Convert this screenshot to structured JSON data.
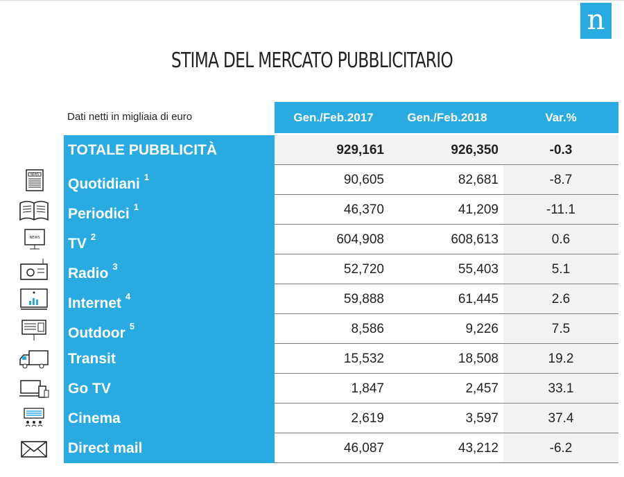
{
  "logo": "n",
  "title": "STIMA DEL MERCATO PUBBLICITARIO",
  "subtitle": "Dati netti in migliaia di euro",
  "headers": [
    "Gen./Feb.2017",
    "Gen./Feb.2018",
    "Var.%"
  ],
  "total": {
    "label": "TOTALE PUBBLICITÀ",
    "v2017": "929,161",
    "v2018": "926,350",
    "var": "-0.3"
  },
  "rows": [
    {
      "label": "Quotidiani",
      "note": "1",
      "v2017": "90,605",
      "v2018": "82,681",
      "var": "-8.7",
      "icon": "newspaper-icon"
    },
    {
      "label": "Periodici",
      "note": "1",
      "v2017": "46,370",
      "v2018": "41,209",
      "var": "-11.1",
      "icon": "magazine-icon"
    },
    {
      "label": "TV",
      "note": "2",
      "v2017": "604,908",
      "v2018": "608,613",
      "var": "0.6",
      "icon": "tv-icon"
    },
    {
      "label": "Radio",
      "note": "3",
      "v2017": "52,720",
      "v2018": "55,403",
      "var": "5.1",
      "icon": "radio-icon"
    },
    {
      "label": "Internet",
      "note": "4",
      "v2017": "59,888",
      "v2018": "61,445",
      "var": "2.6",
      "icon": "monitor-chart-icon"
    },
    {
      "label": "Outdoor",
      "note": "5",
      "v2017": "8,586",
      "v2018": "9,226",
      "var": "7.5",
      "icon": "billboard-icon"
    },
    {
      "label": "Transit",
      "note": "",
      "v2017": "15,532",
      "v2018": "18,508",
      "var": "19.2",
      "icon": "truck-icon"
    },
    {
      "label": "Go TV",
      "note": "",
      "v2017": "1,847",
      "v2018": "2,457",
      "var": "33.1",
      "icon": "devices-icon"
    },
    {
      "label": "Cinema",
      "note": "",
      "v2017": "2,619",
      "v2018": "3,597",
      "var": "37.4",
      "icon": "cinema-icon"
    },
    {
      "label": "Direct mail",
      "note": "",
      "v2017": "46,087",
      "v2018": "43,212",
      "var": "-6.2",
      "icon": "envelope-icon"
    }
  ],
  "colors": {
    "accent": "#29abe2",
    "grey": "#f2f2f2"
  }
}
